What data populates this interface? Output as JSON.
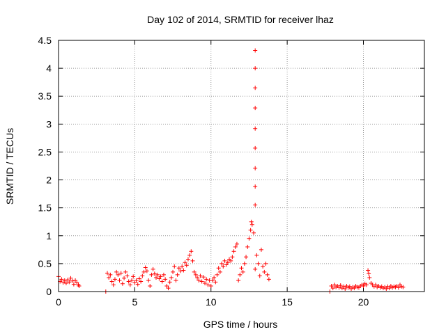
{
  "chart_data": {
    "type": "scatter",
    "title": "Day 102 of 2014, SRMTID for receiver lhaz",
    "xlabel": "GPS time / hours",
    "ylabel": "SRMTID / TECUs",
    "xlim": [
      0,
      24
    ],
    "ylim": [
      0,
      4.5
    ],
    "x_ticks": [
      "0",
      "5",
      "10",
      "15",
      "20"
    ],
    "y_ticks": [
      "0",
      "0.5",
      "1",
      "1.5",
      "2",
      "2.5",
      "3",
      "3.5",
      "4",
      "4.5"
    ],
    "grid": true,
    "marker": "plus",
    "color": "#ff0000",
    "series": [
      {
        "points": [
          [
            0.0,
            0.27
          ],
          [
            0.1,
            0.18
          ],
          [
            0.2,
            0.22
          ],
          [
            0.3,
            0.16
          ],
          [
            0.4,
            0.2
          ],
          [
            0.5,
            0.15
          ],
          [
            0.6,
            0.21
          ],
          [
            0.7,
            0.17
          ],
          [
            0.8,
            0.24
          ],
          [
            0.9,
            0.19
          ],
          [
            1.0,
            0.13
          ],
          [
            1.1,
            0.2
          ],
          [
            1.2,
            0.16
          ],
          [
            1.3,
            0.12
          ],
          [
            1.35,
            0.1
          ],
          [
            3.1,
            0.0
          ],
          [
            3.2,
            0.33
          ],
          [
            3.3,
            0.25
          ],
          [
            3.4,
            0.3
          ],
          [
            3.5,
            0.18
          ],
          [
            3.6,
            0.12
          ],
          [
            3.7,
            0.22
          ],
          [
            3.8,
            0.35
          ],
          [
            3.9,
            0.3
          ],
          [
            4.0,
            0.2
          ],
          [
            4.1,
            0.33
          ],
          [
            4.2,
            0.14
          ],
          [
            4.3,
            0.24
          ],
          [
            4.4,
            0.35
          ],
          [
            4.5,
            0.28
          ],
          [
            4.6,
            0.18
          ],
          [
            4.7,
            0.12
          ],
          [
            4.8,
            0.2
          ],
          [
            4.9,
            0.27
          ],
          [
            5.0,
            0.16
          ],
          [
            5.1,
            0.2
          ],
          [
            5.2,
            0.13
          ],
          [
            5.3,
            0.23
          ],
          [
            5.4,
            0.18
          ],
          [
            5.5,
            0.28
          ],
          [
            5.6,
            0.35
          ],
          [
            5.7,
            0.43
          ],
          [
            5.8,
            0.37
          ],
          [
            5.9,
            0.2
          ],
          [
            6.0,
            0.1
          ],
          [
            6.1,
            0.3
          ],
          [
            6.2,
            0.4
          ],
          [
            6.3,
            0.32
          ],
          [
            6.4,
            0.25
          ],
          [
            6.5,
            0.3
          ],
          [
            6.6,
            0.23
          ],
          [
            6.7,
            0.27
          ],
          [
            6.8,
            0.18
          ],
          [
            6.9,
            0.3
          ],
          [
            7.0,
            0.22
          ],
          [
            7.1,
            0.1
          ],
          [
            7.2,
            0.06
          ],
          [
            7.3,
            0.17
          ],
          [
            7.4,
            0.25
          ],
          [
            7.5,
            0.35
          ],
          [
            7.6,
            0.45
          ],
          [
            7.7,
            0.2
          ],
          [
            7.8,
            0.3
          ],
          [
            7.9,
            0.42
          ],
          [
            8.0,
            0.37
          ],
          [
            8.1,
            0.45
          ],
          [
            8.2,
            0.38
          ],
          [
            8.3,
            0.52
          ],
          [
            8.4,
            0.47
          ],
          [
            8.5,
            0.58
          ],
          [
            8.6,
            0.65
          ],
          [
            8.7,
            0.72
          ],
          [
            8.8,
            0.55
          ],
          [
            8.9,
            0.35
          ],
          [
            9.0,
            0.3
          ],
          [
            9.1,
            0.25
          ],
          [
            9.2,
            0.2
          ],
          [
            9.3,
            0.28
          ],
          [
            9.4,
            0.18
          ],
          [
            9.5,
            0.26
          ],
          [
            9.6,
            0.15
          ],
          [
            9.7,
            0.22
          ],
          [
            9.8,
            0.12
          ],
          [
            9.9,
            0.2
          ],
          [
            10.0,
            0.1
          ],
          [
            10.1,
            0.2
          ],
          [
            10.2,
            0.25
          ],
          [
            10.3,
            0.17
          ],
          [
            10.4,
            0.3
          ],
          [
            10.5,
            0.42
          ],
          [
            10.6,
            0.35
          ],
          [
            10.7,
            0.5
          ],
          [
            10.8,
            0.45
          ],
          [
            10.9,
            0.55
          ],
          [
            11.0,
            0.48
          ],
          [
            11.1,
            0.52
          ],
          [
            11.2,
            0.58
          ],
          [
            11.3,
            0.55
          ],
          [
            11.4,
            0.62
          ],
          [
            11.5,
            0.72
          ],
          [
            11.6,
            0.8
          ],
          [
            11.7,
            0.85
          ],
          [
            11.8,
            0.2
          ],
          [
            11.9,
            0.3
          ],
          [
            12.0,
            0.42
          ],
          [
            12.1,
            0.35
          ],
          [
            12.2,
            0.5
          ],
          [
            12.3,
            0.62
          ],
          [
            12.4,
            0.8
          ],
          [
            12.5,
            0.95
          ],
          [
            12.6,
            1.1
          ],
          [
            12.65,
            1.25
          ],
          [
            12.7,
            1.2
          ],
          [
            12.8,
            1.05
          ],
          [
            12.9,
            0.4
          ],
          [
            13.0,
            0.65
          ],
          [
            13.1,
            0.5
          ],
          [
            13.2,
            0.28
          ],
          [
            13.3,
            0.75
          ],
          [
            13.4,
            0.45
          ],
          [
            13.5,
            0.35
          ],
          [
            13.6,
            0.5
          ],
          [
            13.7,
            0.3
          ],
          [
            13.8,
            0.22
          ],
          [
            12.9,
            1.55
          ],
          [
            12.9,
            1.88
          ],
          [
            12.9,
            2.21
          ],
          [
            12.9,
            2.57
          ],
          [
            12.9,
            2.92
          ],
          [
            12.9,
            3.29
          ],
          [
            12.9,
            3.65
          ],
          [
            12.9,
            4.0
          ],
          [
            12.9,
            4.32
          ],
          [
            17.8,
            0.0
          ],
          [
            17.9,
            0.1
          ],
          [
            18.0,
            0.06
          ],
          [
            18.1,
            0.12
          ],
          [
            18.2,
            0.08
          ],
          [
            18.3,
            0.1
          ],
          [
            18.4,
            0.07
          ],
          [
            18.5,
            0.11
          ],
          [
            18.6,
            0.06
          ],
          [
            18.7,
            0.09
          ],
          [
            18.8,
            0.05
          ],
          [
            18.9,
            0.1
          ],
          [
            19.0,
            0.07
          ],
          [
            19.1,
            0.09
          ],
          [
            19.2,
            0.05
          ],
          [
            19.3,
            0.08
          ],
          [
            19.4,
            0.06
          ],
          [
            19.5,
            0.1
          ],
          [
            19.6,
            0.08
          ],
          [
            19.7,
            0.07
          ],
          [
            19.8,
            0.1
          ],
          [
            19.9,
            0.12
          ],
          [
            20.0,
            0.1
          ],
          [
            20.1,
            0.14
          ],
          [
            20.2,
            0.12
          ],
          [
            20.3,
            0.38
          ],
          [
            20.35,
            0.32
          ],
          [
            20.4,
            0.25
          ],
          [
            20.5,
            0.15
          ],
          [
            20.6,
            0.12
          ],
          [
            20.7,
            0.09
          ],
          [
            20.8,
            0.12
          ],
          [
            20.9,
            0.08
          ],
          [
            21.0,
            0.1
          ],
          [
            21.1,
            0.07
          ],
          [
            21.2,
            0.09
          ],
          [
            21.3,
            0.06
          ],
          [
            21.4,
            0.08
          ],
          [
            21.5,
            0.05
          ],
          [
            21.6,
            0.09
          ],
          [
            21.7,
            0.06
          ],
          [
            21.8,
            0.1
          ],
          [
            21.9,
            0.07
          ],
          [
            22.0,
            0.09
          ],
          [
            22.1,
            0.08
          ],
          [
            22.2,
            0.1
          ],
          [
            22.3,
            0.07
          ],
          [
            22.4,
            0.12
          ],
          [
            22.5,
            0.09
          ],
          [
            22.6,
            0.08
          ]
        ]
      }
    ]
  }
}
